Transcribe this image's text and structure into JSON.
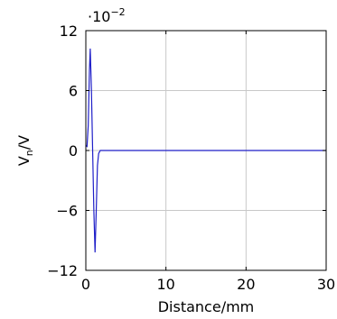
{
  "chart_data": {
    "type": "line",
    "xlabel": "Distance/mm",
    "ylabel_main": "V",
    "ylabel_sub": "n",
    "ylabel_suffix": "/V",
    "y_scale_factor": "·10",
    "y_scale_exponent": "−2",
    "xlim": [
      0,
      30
    ],
    "ylim": [
      -12,
      12
    ],
    "x_ticks": [
      0,
      10,
      20,
      30
    ],
    "x_tick_labels": [
      "0",
      "10",
      "20",
      "30"
    ],
    "y_ticks": [
      12,
      6,
      0,
      -6,
      -12
    ],
    "y_tick_labels": [
      "12",
      "6",
      "0",
      "−6",
      "−12"
    ],
    "grid": true,
    "series": [
      {
        "color": "#1f1fc8",
        "x": [
          0,
          0.15,
          0.3,
          0.45,
          0.55,
          0.7,
          0.85,
          1.0,
          1.15,
          1.3,
          1.45,
          1.6,
          1.8,
          2.0,
          2.5,
          3,
          5,
          10,
          15,
          20,
          25,
          30
        ],
        "y": [
          0.5,
          0.4,
          2.5,
          8.0,
          10.2,
          6.0,
          0.0,
          -6.0,
          -10.2,
          -6.0,
          -1.5,
          -0.3,
          0.0,
          0.0,
          0.0,
          0.0,
          0.0,
          0.0,
          0.0,
          0.0,
          0.0,
          0.0
        ]
      }
    ]
  }
}
